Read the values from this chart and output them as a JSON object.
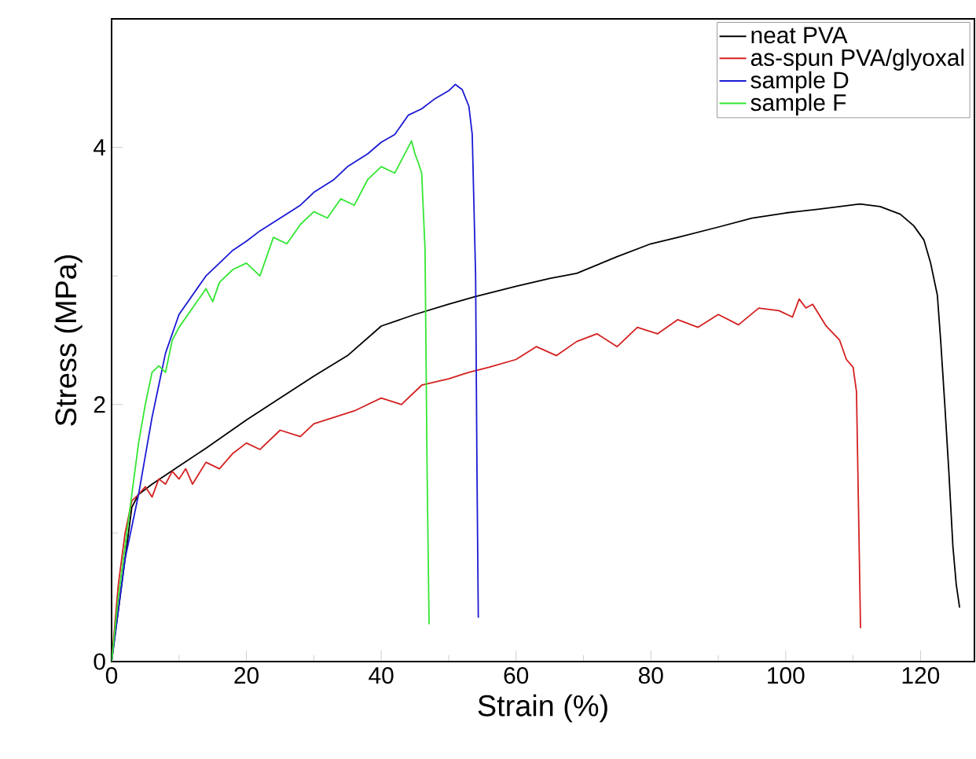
{
  "chart_data": {
    "type": "line",
    "xlabel": "Strain (%)",
    "ylabel": "Stress (MPa)",
    "xlim": [
      0,
      128
    ],
    "ylim": [
      0,
      5
    ],
    "xticks": [
      0,
      20,
      40,
      60,
      80,
      100,
      120
    ],
    "yticks": [
      0,
      2,
      4
    ],
    "grid": false,
    "legend": "top right",
    "marker": "none",
    "line_style": "solid",
    "series": [
      {
        "name": "neat PVA",
        "color": "#000000",
        "x": [
          0,
          3,
          4,
          6,
          8,
          10,
          14,
          20,
          25,
          30,
          35,
          40,
          45,
          50,
          54,
          60,
          65,
          69,
          75,
          80,
          84,
          90,
          95,
          100,
          105,
          108,
          111,
          114,
          117,
          119,
          120.5,
          121.5,
          122.5,
          123,
          123.6,
          124.2,
          124.8,
          125.3,
          125.8
        ],
        "values": [
          0,
          1.2,
          1.3,
          1.38,
          1.45,
          1.52,
          1.66,
          1.88,
          2.05,
          2.22,
          2.38,
          2.61,
          2.7,
          2.78,
          2.84,
          2.92,
          2.98,
          3.02,
          3.15,
          3.25,
          3.3,
          3.38,
          3.45,
          3.49,
          3.52,
          3.54,
          3.56,
          3.54,
          3.48,
          3.39,
          3.28,
          3.1,
          2.85,
          2.49,
          2.0,
          1.48,
          0.9,
          0.6,
          0.42
        ]
      },
      {
        "name": "as-spun PVA/glyoxal",
        "color": "#d42020",
        "x": [
          0,
          1,
          2,
          3,
          4,
          5,
          6,
          7,
          8,
          9,
          10,
          11,
          12,
          14,
          16,
          18,
          20,
          22,
          25,
          28,
          30,
          33,
          36,
          40,
          43,
          46,
          50,
          53,
          56,
          60,
          63,
          66,
          69,
          72,
          75,
          78,
          81,
          84,
          87,
          90,
          93,
          96,
          99,
          101,
          102,
          103,
          104,
          106,
          108,
          109,
          110,
          110.5,
          110.8,
          111.1
        ],
        "values": [
          0,
          0.6,
          1.0,
          1.25,
          1.3,
          1.36,
          1.28,
          1.42,
          1.38,
          1.48,
          1.42,
          1.5,
          1.38,
          1.55,
          1.5,
          1.62,
          1.7,
          1.65,
          1.8,
          1.75,
          1.85,
          1.9,
          1.95,
          2.05,
          2.0,
          2.15,
          2.2,
          2.25,
          2.29,
          2.35,
          2.45,
          2.38,
          2.49,
          2.55,
          2.45,
          2.6,
          2.55,
          2.66,
          2.6,
          2.7,
          2.62,
          2.75,
          2.73,
          2.68,
          2.82,
          2.75,
          2.78,
          2.61,
          2.5,
          2.35,
          2.29,
          2.1,
          1.2,
          0.26
        ]
      },
      {
        "name": "sample D",
        "color": "#1a1ad4",
        "x": [
          0,
          1,
          2,
          3,
          4,
          5,
          6,
          7,
          8,
          9,
          10,
          12,
          14,
          16,
          18,
          20,
          22,
          25,
          28,
          30,
          33,
          35,
          38,
          40,
          42,
          44,
          46,
          48,
          50,
          51,
          52,
          53,
          53.5,
          54,
          54.2,
          54.4
        ],
        "values": [
          0,
          0.4,
          0.8,
          1.05,
          1.3,
          1.6,
          1.9,
          2.15,
          2.4,
          2.55,
          2.7,
          2.85,
          3.0,
          3.1,
          3.2,
          3.27,
          3.35,
          3.45,
          3.55,
          3.65,
          3.75,
          3.85,
          3.95,
          4.04,
          4.1,
          4.25,
          4.3,
          4.38,
          4.44,
          4.49,
          4.45,
          4.32,
          4.1,
          3.0,
          1.5,
          0.34
        ]
      },
      {
        "name": "sample F",
        "color": "#33e633",
        "x": [
          0,
          1,
          2,
          3,
          4,
          5,
          6,
          7,
          8,
          9,
          10,
          12,
          14,
          15,
          16,
          18,
          20,
          22,
          24,
          26,
          28,
          30,
          32,
          34,
          36,
          38,
          40,
          42,
          44,
          44.5,
          45,
          45.5,
          46,
          46.5,
          46.8,
          47.1
        ],
        "values": [
          0,
          0.5,
          0.9,
          1.3,
          1.7,
          2.0,
          2.25,
          2.3,
          2.25,
          2.5,
          2.6,
          2.75,
          2.9,
          2.8,
          2.95,
          3.05,
          3.1,
          3.0,
          3.3,
          3.25,
          3.4,
          3.5,
          3.45,
          3.6,
          3.55,
          3.75,
          3.85,
          3.8,
          4.0,
          4.05,
          3.95,
          3.88,
          3.8,
          3.2,
          1.5,
          0.29
        ]
      }
    ]
  }
}
